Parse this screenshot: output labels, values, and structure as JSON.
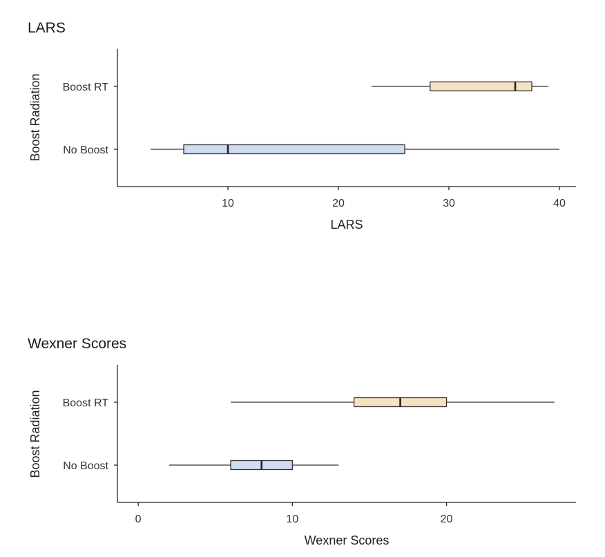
{
  "chart_data": [
    {
      "type": "boxplot",
      "orientation": "horizontal",
      "title": "LARS",
      "xlabel": "LARS",
      "ylabel": "Boost Radiation",
      "xlim": [
        0,
        41.5
      ],
      "xticks": [
        10,
        20,
        30,
        40
      ],
      "grid": false,
      "legend": "none",
      "categories": [
        "Boost RT",
        "No Boost"
      ],
      "series": [
        {
          "category": "Boost RT",
          "min": 23,
          "q1": 28.3,
          "median": 36,
          "q3": 37.5,
          "max": 39,
          "color": "#f5e2c1"
        },
        {
          "category": "No Boost",
          "min": 3,
          "q1": 6,
          "median": 10,
          "q3": 26,
          "max": 40,
          "color": "#cfdcf3"
        }
      ]
    },
    {
      "type": "boxplot",
      "orientation": "horizontal",
      "title": "Wexner Scores",
      "xlabel": "Wexner Scores",
      "ylabel": "Boost Radiation",
      "xlim": [
        -1.35,
        28.4
      ],
      "xticks": [
        0,
        10,
        20
      ],
      "grid": false,
      "legend": "none",
      "categories": [
        "Boost RT",
        "No Boost"
      ],
      "series": [
        {
          "category": "Boost RT",
          "min": 6,
          "q1": 14,
          "median": 17,
          "q3": 20,
          "max": 27,
          "color": "#f5e2c1"
        },
        {
          "category": "No Boost",
          "min": 2,
          "q1": 6,
          "median": 8,
          "q3": 10,
          "max": 13,
          "color": "#cfdcf3"
        }
      ]
    }
  ]
}
